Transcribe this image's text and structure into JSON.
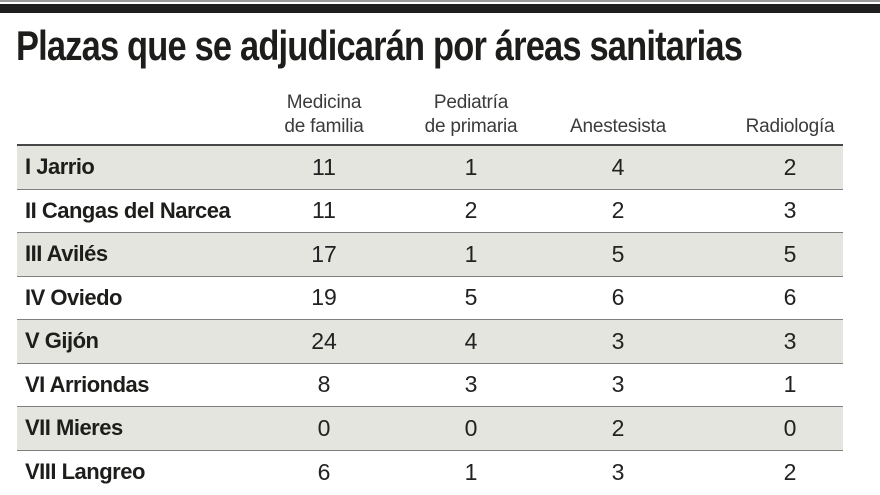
{
  "title": "Plazas que se adjudicarán por áreas sanitarias",
  "colors": {
    "topbar_line": "#9b9b9b",
    "topbar_bar": "#1f1f1f",
    "title_text": "#1d1d1b",
    "header_text": "#3b3b3b",
    "header_rule": "#474747",
    "row_separator": "#7f7f7f",
    "row_shade": "#e4e5de",
    "cell_text": "#222222"
  },
  "chart_data": {
    "type": "table",
    "title": "Plazas que se adjudicarán por áreas sanitarias",
    "columns": [
      "Medicina de familia",
      "Pediatría de primaria",
      "Anestesista",
      "Radiología"
    ],
    "column_headers": [
      {
        "line1": "Medicina",
        "line2": "de familia"
      },
      {
        "line1": "Pediatría",
        "line2": "de primaria"
      },
      {
        "line1": "",
        "line2": "Anestesista"
      },
      {
        "line1": "",
        "line2": "Radiología"
      }
    ],
    "rows": [
      {
        "area": "I Jarrio",
        "values": [
          11,
          1,
          4,
          2
        ]
      },
      {
        "area": "II Cangas del Narcea",
        "values": [
          11,
          2,
          2,
          3
        ]
      },
      {
        "area": "III Avilés",
        "values": [
          17,
          1,
          5,
          5
        ]
      },
      {
        "area": "IV Oviedo",
        "values": [
          19,
          5,
          6,
          6
        ]
      },
      {
        "area": "V Gijón",
        "values": [
          24,
          4,
          3,
          3
        ]
      },
      {
        "area": "VI Arriondas",
        "values": [
          8,
          3,
          3,
          1
        ]
      },
      {
        "area": "VII Mieres",
        "values": [
          0,
          0,
          2,
          0
        ]
      },
      {
        "area": "VIII Langreo",
        "values": [
          6,
          1,
          3,
          2
        ]
      }
    ]
  }
}
